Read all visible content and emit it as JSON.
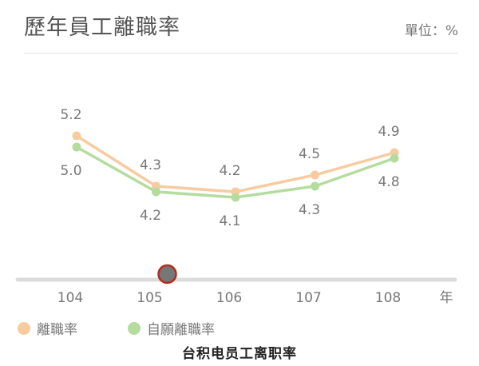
{
  "header": {
    "title": "歷年員工離職率",
    "unit": "單位：%"
  },
  "chart_data": {
    "type": "line",
    "categories": [
      "104",
      "105",
      "106",
      "107",
      "108"
    ],
    "x_unit": "年",
    "y_unit": "%",
    "ylim": [
      3.2,
      6.2
    ],
    "grid": false,
    "legend_placement": "bottom-left",
    "series": [
      {
        "name": "離職率",
        "values": [
          5.2,
          4.3,
          4.2,
          4.5,
          4.9
        ],
        "color": "#f7cba0"
      },
      {
        "name": "自願離職率",
        "values": [
          5.0,
          4.2,
          4.1,
          4.3,
          4.8
        ],
        "color": "#b5dc9f"
      }
    ],
    "slider": {
      "position_index": 1,
      "fill_color": "#777777",
      "ring_color": "#b52a1f"
    }
  },
  "caption": "台积电员工离职率"
}
